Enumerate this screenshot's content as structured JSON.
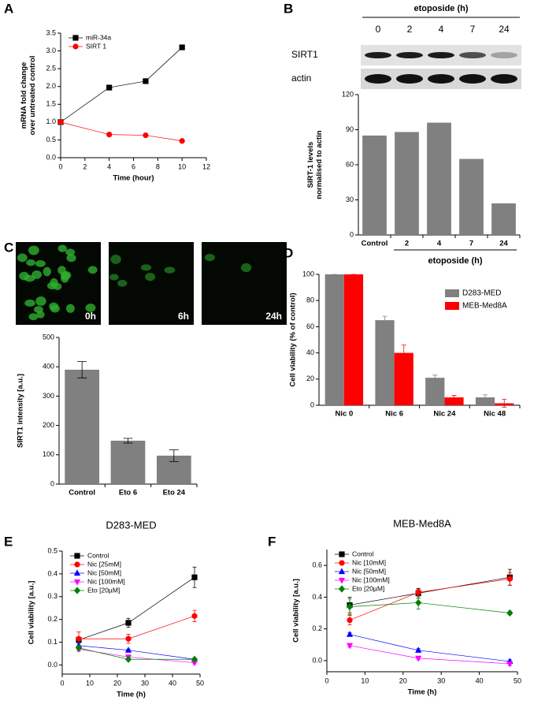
{
  "chart_data": [
    {
      "panel": "A",
      "type": "line",
      "x": [
        0,
        4,
        7,
        10
      ],
      "xlim": [
        0,
        12
      ],
      "xticks": [
        0,
        2,
        4,
        6,
        8,
        10,
        12
      ],
      "ylim": [
        0,
        3.5
      ],
      "yticks": [
        {
          "value": 0,
          "label": "0.0"
        },
        0.5,
        {
          "value": 1,
          "label": "1.0"
        },
        1.5,
        {
          "value": 2,
          "label": "2.0"
        },
        2.5,
        {
          "value": 3,
          "label": "3.0"
        },
        3.5
      ],
      "xlabel": "Time (hour)",
      "ylabel": [
        "mRNA fold change",
        "over untreated control"
      ],
      "legend": "upper left",
      "series": [
        {
          "name": "miR-34a",
          "color": "#000000",
          "marker": "square",
          "values": [
            1,
            1.97,
            2.15,
            3.1
          ]
        },
        {
          "name": "SIRT 1",
          "color": "#ff0000",
          "marker": "circle",
          "values": [
            1,
            0.65,
            0.63,
            0.47
          ]
        }
      ]
    },
    {
      "panel": "B",
      "type": "bar",
      "categories": [
        "Control",
        "2",
        "4",
        "7",
        "24"
      ],
      "values": [
        85,
        88,
        96,
        65,
        27
      ],
      "color": "#808080",
      "ylim": [
        0,
        120
      ],
      "yticks": [
        0,
        30,
        60,
        90,
        120
      ],
      "ylabel": [
        "SIRT-1 levels",
        "normalised to actin"
      ],
      "xlabel": "etoposide (h)",
      "blot": {
        "title": "etoposide (h)",
        "lanes": [
          "0",
          "2",
          "4",
          "7",
          "24"
        ],
        "rows": [
          "SIRT1",
          "actin"
        ]
      }
    },
    {
      "panel": "C",
      "type": "bar",
      "categories": [
        "Control",
        "Eto 6",
        "Eto 24"
      ],
      "values": [
        390,
        148,
        97
      ],
      "errors": [
        28,
        8,
        20
      ],
      "color": "#808080",
      "ylim": [
        0,
        500
      ],
      "yticks": [
        0,
        100,
        200,
        300,
        400,
        500
      ],
      "ylabel": [
        "SIRT1 intensity [a.u.]"
      ],
      "images": [
        "0h",
        "6h",
        "24h"
      ]
    },
    {
      "panel": "D",
      "type": "bar",
      "categories": [
        "Nic 0",
        "Nic 6",
        "Nic 24",
        "Nic 48"
      ],
      "ylim": [
        0,
        100
      ],
      "yticks": [
        0,
        20,
        40,
        60,
        80,
        100
      ],
      "ylabel": [
        "Cell viability (% of control)"
      ],
      "legend": "upper right",
      "series": [
        {
          "name": "D283-MED",
          "color": "#808080",
          "values": [
            100,
            65,
            21,
            6
          ],
          "errors": [
            0,
            3,
            2,
            2
          ]
        },
        {
          "name": "MEB-Med8A",
          "color": "#ff0000",
          "values": [
            100,
            40,
            6,
            1.5
          ],
          "errors": [
            0,
            6,
            1.5,
            3
          ]
        }
      ]
    },
    {
      "panel": "E",
      "type": "line",
      "title": "D283-MED",
      "x": [
        6,
        24,
        48
      ],
      "xlim": [
        0,
        50
      ],
      "xticks": [
        0,
        10,
        20,
        30,
        40,
        50
      ],
      "ylim": [
        -0.04,
        0.5
      ],
      "yticks": [
        {
          "value": 0,
          "label": "0.0"
        },
        0.1,
        0.2,
        0.3,
        0.4,
        0.5
      ],
      "xlabel": "Time (h)",
      "ylabel": [
        "Cell viability [a.u.]"
      ],
      "legend": "upper left",
      "series": [
        {
          "name": "Control",
          "color": "#000000",
          "marker": "square",
          "values": [
            0.11,
            0.185,
            0.385
          ],
          "errors": [
            0.01,
            0.02,
            0.045
          ]
        },
        {
          "name": "Nic [25mM]",
          "color": "#ff0000",
          "marker": "circle",
          "values": [
            0.115,
            0.115,
            0.215
          ],
          "errors": [
            0.03,
            0.02,
            0.025
          ]
        },
        {
          "name": "Nic [50mM]",
          "color": "#0000ff",
          "marker": "triangle",
          "values": [
            0.085,
            0.065,
            0.025
          ],
          "errors": [
            0.01,
            0.005,
            0.005
          ]
        },
        {
          "name": "Nic [100mM]",
          "color": "#ff00ff",
          "marker": "triangle-down",
          "values": [
            0.07,
            0.035,
            0.01
          ],
          "errors": [
            0.01,
            0.005,
            0.005
          ]
        },
        {
          "name": "Eto [20µM]",
          "color": "#008000",
          "marker": "diamond",
          "values": [
            0.075,
            0.025,
            0.025
          ],
          "errors": [
            0.01,
            0.005,
            0.005
          ]
        }
      ]
    },
    {
      "panel": "F",
      "type": "line",
      "title": "MEB-Med8A",
      "x": [
        6,
        24,
        48
      ],
      "xlim": [
        0,
        50
      ],
      "xticks": [
        0,
        10,
        20,
        30,
        40,
        50
      ],
      "ylim": [
        -0.07,
        0.7
      ],
      "yticks": [
        {
          "value": 0,
          "label": "0.0"
        },
        0.2,
        0.4,
        0.6
      ],
      "xlabel": "Time (h)",
      "ylabel": [
        "Cell viability [a.u.]"
      ],
      "legend": "upper left",
      "series": [
        {
          "name": "Control",
          "color": "#000000",
          "marker": "square",
          "values": [
            0.35,
            0.425,
            0.525
          ],
          "errors": [
            0.05,
            0.03,
            0.05
          ]
        },
        {
          "name": "Nic [10mM]",
          "color": "#ff0000",
          "marker": "circle",
          "values": [
            0.255,
            0.43,
            0.515
          ],
          "errors": [
            0.03,
            0.02,
            0.04
          ]
        },
        {
          "name": "Nic [50mM]",
          "color": "#0000ff",
          "marker": "triangle",
          "values": [
            0.165,
            0.065,
            -0.005
          ],
          "errors": [
            0.01,
            0.01,
            0.01
          ]
        },
        {
          "name": "Nic [100mM]",
          "color": "#ff00ff",
          "marker": "triangle-down",
          "values": [
            0.095,
            0.015,
            -0.02
          ],
          "errors": [
            0.01,
            0.01,
            0.01
          ]
        },
        {
          "name": "Eto [20µM]",
          "color": "#008000",
          "marker": "diamond",
          "values": [
            0.34,
            0.365,
            0.3
          ],
          "errors": [
            0.05,
            0.04,
            0.01
          ]
        }
      ]
    }
  ]
}
